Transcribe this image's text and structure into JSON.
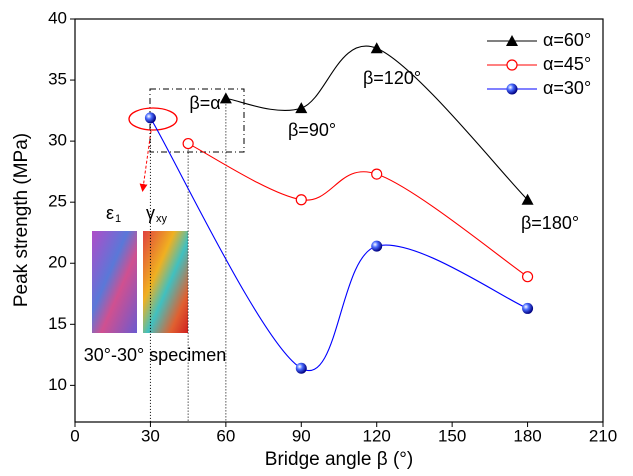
{
  "chart_data": {
    "type": "line",
    "smooth": true,
    "x_label": "Bridge angle β (°)",
    "y_label": "Peak strength (MPa)",
    "xlim": [
      0,
      210
    ],
    "xticks": [
      0,
      30,
      60,
      90,
      120,
      150,
      180,
      210
    ],
    "ylim": [
      7,
      40
    ],
    "yticks": [
      10,
      15,
      20,
      25,
      30,
      35,
      40
    ],
    "legend": "upper right",
    "series": [
      {
        "name": "α=60°",
        "color": "#000000",
        "marker": "triangle",
        "x": [
          60,
          90,
          120,
          180
        ],
        "values": [
          33.5,
          32.7,
          37.6,
          25.2
        ]
      },
      {
        "name": "α=45°",
        "color": "#ff0000",
        "marker": "open-circle",
        "x": [
          45,
          90,
          120,
          180
        ],
        "values": [
          29.8,
          25.2,
          27.3,
          18.9
        ]
      },
      {
        "name": "α=30°",
        "color": "#0000ff",
        "marker": "sphere",
        "x": [
          30,
          90,
          120,
          180
        ],
        "values": [
          31.9,
          11.4,
          21.4,
          16.3
        ]
      }
    ],
    "annotations": {
      "beta_alpha": "β=α",
      "beta_90": "β=90°",
      "beta_120": "β=120°",
      "beta_180": "β=180°",
      "specimen": "30°-30° specimen",
      "epsilon": "ε",
      "epsilon_sub": "1",
      "gamma": "γ",
      "gamma_sub": "xy"
    }
  }
}
